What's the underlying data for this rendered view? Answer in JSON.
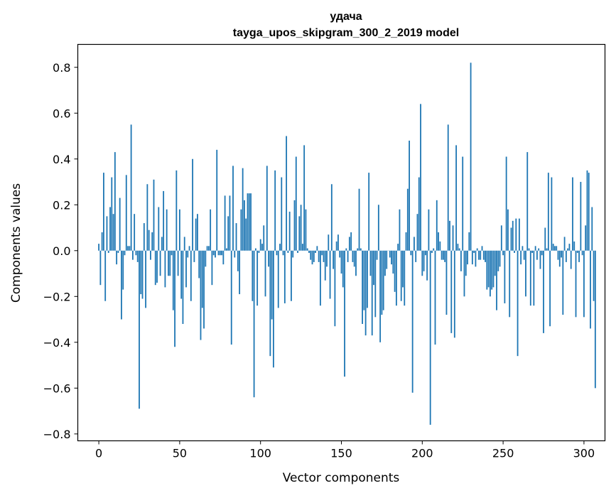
{
  "chart_data": {
    "type": "bar",
    "title": "удача",
    "subtitle": "tayga_upos_skipgram_300_2_2019 model",
    "xlabel": "Vector components",
    "ylabel": "Components values",
    "xlim": [
      -13,
      313
    ],
    "ylim": [
      -0.83,
      0.9
    ],
    "xticks": [
      0,
      50,
      100,
      150,
      200,
      250,
      300
    ],
    "yticks": [
      -0.8,
      -0.6,
      -0.4,
      -0.2,
      0.0,
      0.2,
      0.4,
      0.6,
      0.8
    ],
    "xtick_labels": [
      "0",
      "50",
      "100",
      "150",
      "200",
      "250",
      "300"
    ],
    "ytick_labels": [
      "−0.8",
      "−0.6",
      "−0.4",
      "−0.2",
      "0.0",
      "0.2",
      "0.4",
      "0.6",
      "0.8"
    ],
    "grid": false,
    "legend": "none",
    "bar_color": "#1f77b4",
    "values": [
      0.03,
      -0.15,
      0.08,
      0.34,
      -0.22,
      0.15,
      -0.01,
      0.19,
      0.32,
      0.16,
      0.43,
      -0.06,
      -0.01,
      0.23,
      -0.3,
      -0.17,
      -0.02,
      0.33,
      0.02,
      0.02,
      0.55,
      -0.04,
      0.16,
      -0.02,
      -0.05,
      -0.69,
      -0.19,
      -0.21,
      0.12,
      -0.25,
      0.29,
      0.09,
      -0.04,
      0.08,
      0.31,
      -0.15,
      -0.14,
      0.19,
      -0.11,
      0.06,
      0.26,
      -0.16,
      0.18,
      -0.11,
      -0.11,
      -0.02,
      -0.26,
      -0.42,
      0.35,
      -0.11,
      0.18,
      -0.21,
      -0.32,
      0.06,
      -0.16,
      -0.03,
      0.02,
      -0.22,
      0.4,
      -0.05,
      0.14,
      0.16,
      -0.12,
      -0.39,
      -0.25,
      -0.34,
      -0.07,
      0.02,
      0.02,
      0.18,
      -0.15,
      -0.02,
      -0.03,
      0.44,
      -0.02,
      -0.02,
      -0.02,
      -0.06,
      0.24,
      0.01,
      0.15,
      0.24,
      -0.41,
      0.37,
      -0.03,
      0.12,
      -0.09,
      -0.19,
      0.18,
      0.36,
      0.22,
      0.14,
      0.25,
      0.25,
      0.25,
      -0.22,
      -0.64,
      0.01,
      -0.24,
      -0.01,
      0.05,
      0.03,
      0.11,
      -0.2,
      0.37,
      -0.07,
      -0.46,
      -0.3,
      -0.51,
      0.35,
      -0.02,
      -0.25,
      0.03,
      0.32,
      -0.02,
      -0.23,
      0.5,
      -0.01,
      0.17,
      -0.22,
      -0.03,
      0.22,
      0.41,
      -0.01,
      0.15,
      0.2,
      0.03,
      0.46,
      0.18,
      0.01,
      -0.01,
      -0.04,
      -0.06,
      -0.05,
      -0.01,
      0.02,
      -0.05,
      -0.24,
      -0.02,
      -0.05,
      -0.13,
      -0.07,
      0.07,
      -0.21,
      0.29,
      -0.08,
      -0.33,
      0.04,
      0.07,
      -0.03,
      -0.1,
      -0.16,
      -0.55,
      0.01,
      -0.05,
      0.06,
      0.08,
      -0.05,
      -0.07,
      -0.11,
      0.01,
      0.27,
      0.01,
      -0.32,
      -0.26,
      -0.37,
      -0.25,
      0.34,
      -0.11,
      -0.37,
      -0.15,
      -0.29,
      -0.04,
      0.2,
      -0.4,
      -0.28,
      -0.26,
      -0.11,
      -0.08,
      0.0,
      -0.03,
      -0.06,
      -0.1,
      -0.18,
      -0.24,
      0.03,
      0.18,
      -0.22,
      -0.16,
      -0.24,
      0.08,
      0.27,
      0.48,
      -0.02,
      -0.62,
      0.06,
      -0.05,
      0.16,
      0.32,
      0.64,
      -0.11,
      -0.09,
      -0.02,
      -0.13,
      0.18,
      -0.76,
      -0.01,
      0.01,
      -0.41,
      0.22,
      0.08,
      0.04,
      -0.04,
      -0.04,
      -0.05,
      -0.28,
      0.55,
      0.13,
      -0.36,
      0.11,
      -0.38,
      0.46,
      0.03,
      0.01,
      -0.09,
      0.41,
      -0.2,
      -0.11,
      -0.06,
      0.08,
      0.82,
      -0.06,
      -0.01,
      -0.07,
      0.01,
      -0.04,
      -0.04,
      0.02,
      -0.04,
      -0.05,
      -0.17,
      -0.16,
      -0.2,
      -0.17,
      -0.16,
      -0.11,
      -0.26,
      -0.09,
      -0.07,
      0.11,
      -0.02,
      -0.23,
      0.41,
      0.18,
      -0.29,
      0.1,
      0.13,
      -0.01,
      0.14,
      -0.46,
      0.14,
      -0.06,
      0.02,
      -0.04,
      -0.2,
      0.43,
      0.01,
      -0.24,
      -0.01,
      -0.24,
      0.02,
      -0.04,
      0.01,
      -0.08,
      -0.02,
      -0.36,
      0.1,
      0.01,
      0.34,
      -0.33,
      0.32,
      0.03,
      0.02,
      0.02,
      -0.04,
      -0.07,
      -0.03,
      -0.28,
      0.06,
      -0.05,
      0.01,
      0.03,
      -0.08,
      0.32,
      0.04,
      -0.29,
      -0.01,
      -0.05,
      0.3,
      -0.02,
      -0.29,
      0.11,
      0.35,
      0.34,
      -0.34,
      0.19,
      -0.22,
      -0.6
    ]
  }
}
